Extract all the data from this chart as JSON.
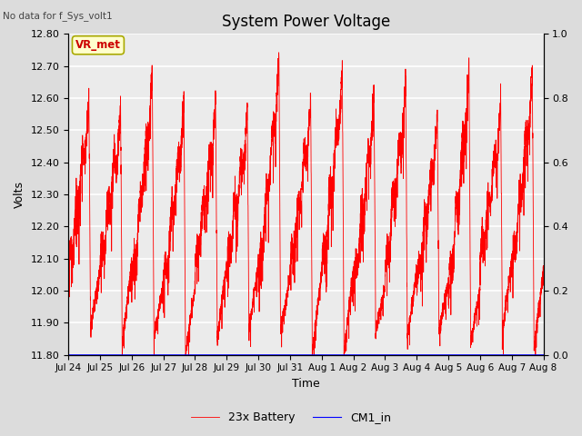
{
  "title": "System Power Voltage",
  "no_data_label": "No data for f_Sys_volt1",
  "xlabel": "Time",
  "ylabel": "Volts",
  "ylim_left": [
    11.8,
    12.8
  ],
  "ylim_right": [
    0.0,
    1.0
  ],
  "yticks_left": [
    11.8,
    11.9,
    12.0,
    12.1,
    12.2,
    12.3,
    12.4,
    12.5,
    12.6,
    12.7,
    12.8
  ],
  "yticks_right": [
    0.0,
    0.2,
    0.4,
    0.6,
    0.8,
    1.0
  ],
  "xtick_labels": [
    "Jul 24",
    "Jul 25",
    "Jul 26",
    "Jul 27",
    "Jul 28",
    "Jul 29",
    "Jul 30",
    "Jul 31",
    "Aug 1",
    "Aug 2",
    "Aug 3",
    "Aug 4",
    "Aug 5",
    "Aug 6",
    "Aug 7",
    "Aug 8"
  ],
  "background_color": "#dcdcdc",
  "plot_bg_color": "#ebebeb",
  "grid_color": "#ffffff",
  "legend_items": [
    "23x Battery",
    "CM1_in"
  ],
  "legend_colors": [
    "#ff0000",
    "#0000ff"
  ],
  "vr_met_label": "VR_met",
  "vr_met_bg": "#ffffcc",
  "vr_met_border": "#aaaa00",
  "line_color_battery": "#ff0000",
  "line_color_cm1": "#0000ff",
  "seed": 42
}
